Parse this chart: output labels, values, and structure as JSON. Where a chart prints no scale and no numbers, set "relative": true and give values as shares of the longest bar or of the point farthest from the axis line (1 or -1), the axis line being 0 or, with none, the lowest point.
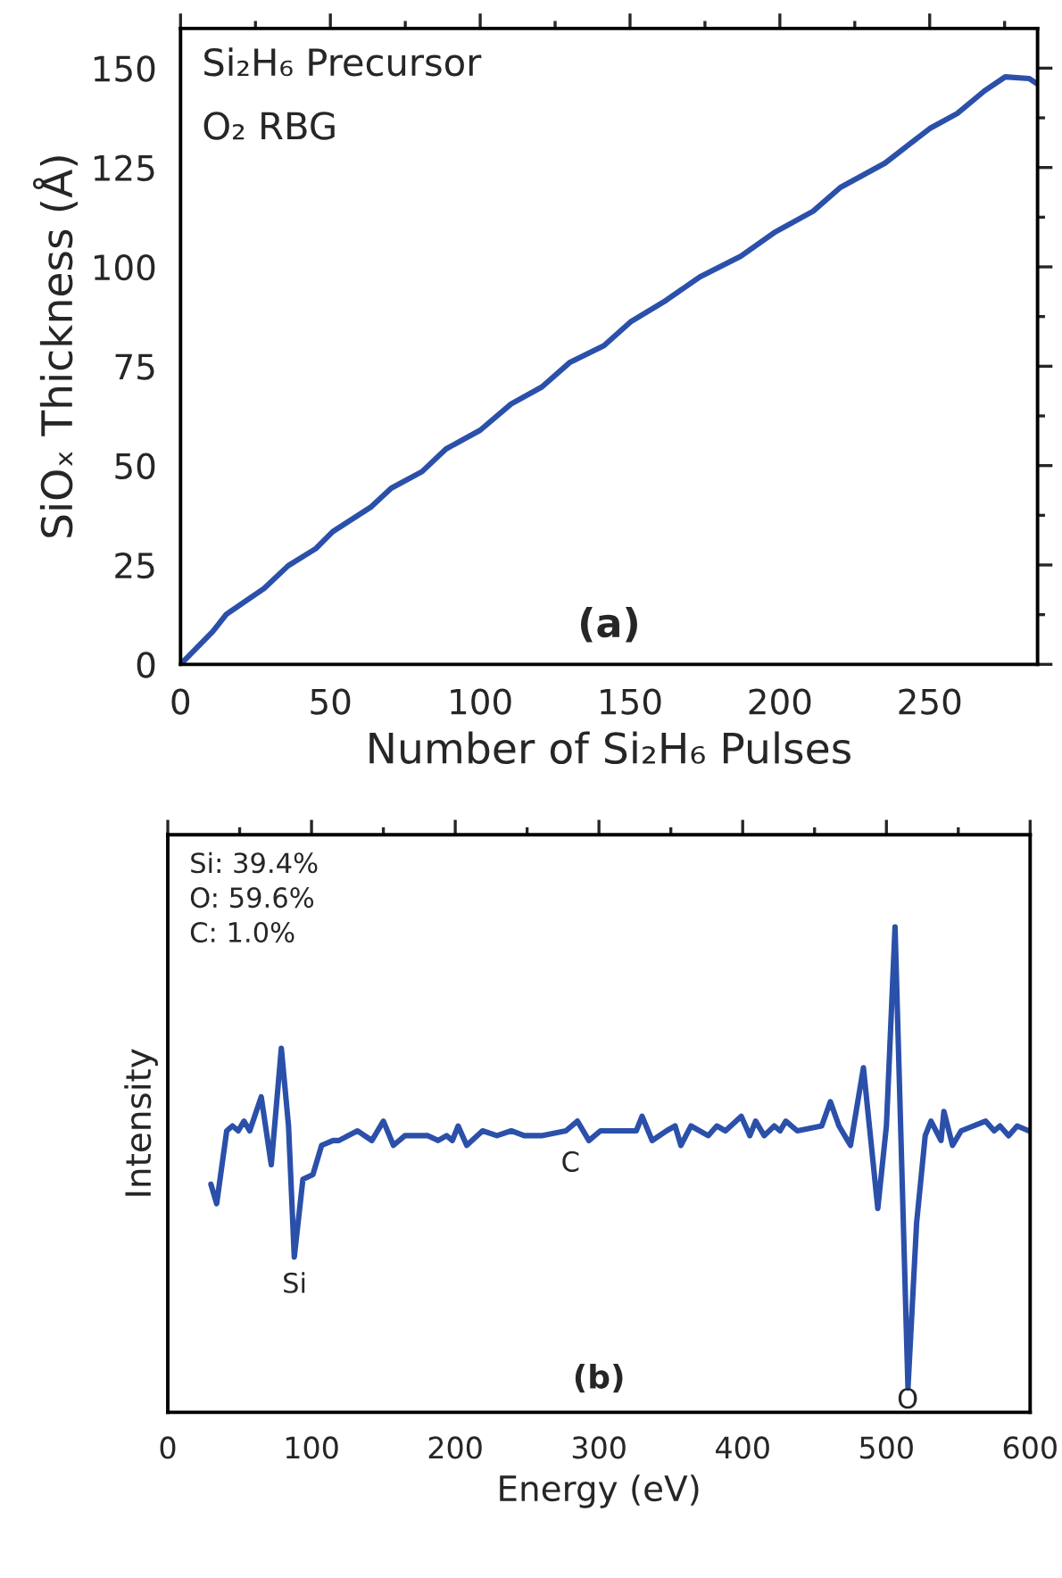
{
  "chart_data": [
    {
      "type": "line",
      "title": "(a)",
      "xlabel": "Number of Si₂H₆ Pulses",
      "ylabel": "SiOₓ Thickness (Å)",
      "annotations": [
        "Si₂H₆ Precursor",
        "O₂ RBG"
      ],
      "xlim": [
        0,
        286
      ],
      "xticks": [
        0,
        50,
        100,
        150,
        200,
        250
      ],
      "ylim": [
        0,
        160
      ],
      "yticks": [
        0,
        25,
        50,
        75,
        100,
        125,
        150
      ],
      "series": [
        {
          "color": "#2b50aa",
          "x": [
            0,
            10.8,
            15.3,
            27.9,
            35.9,
            45.1,
            50.8,
            63.4,
            70.3,
            80.6,
            88.6,
            100,
            110.3,
            120.6,
            129.8,
            141.3,
            150.4,
            161.9,
            173.3,
            187,
            198.5,
            211.1,
            220.2,
            235.1,
            250,
            259.2,
            268.3,
            275.2,
            283.2,
            286
          ],
          "values": [
            0,
            8.3,
            12.6,
            19.1,
            24.8,
            29.1,
            33.4,
            39.5,
            44.3,
            48.5,
            54.2,
            58.9,
            65.5,
            69.8,
            75.9,
            80.2,
            86.3,
            91.5,
            97.5,
            102.7,
            108.8,
            114,
            120,
            126.1,
            134.8,
            138.6,
            144.3,
            147.8,
            147.4,
            146
          ]
        }
      ]
    },
    {
      "type": "line",
      "title": "(b)",
      "xlabel": "Energy (eV)",
      "ylabel": "Intensity",
      "relative": true,
      "annotations": [
        "Si: 39.4%\nO: 59.6%\nC: 1.0%",
        "Si",
        "C",
        "O"
      ],
      "xlim": [
        0,
        600
      ],
      "xticks": [
        0,
        100,
        200,
        300,
        400,
        500,
        600
      ],
      "series": [
        {
          "color": "#2b50aa",
          "x": [
            30,
            34,
            41,
            45,
            49,
            53,
            57,
            65,
            72,
            79,
            84,
            88,
            94,
            101,
            107,
            115,
            119,
            132,
            142,
            150,
            157,
            165,
            181,
            188,
            194,
            198,
            202,
            208,
            219,
            229,
            239,
            248,
            260,
            277,
            285,
            293,
            301,
            326,
            330,
            337,
            347,
            353,
            357,
            364,
            376,
            382,
            388,
            399,
            405,
            409,
            415,
            422,
            426,
            430,
            438,
            455,
            461,
            467,
            475,
            484,
            494,
            500,
            506,
            515,
            521,
            527,
            531,
            538,
            540,
            546,
            552,
            569,
            575,
            579,
            585,
            591,
            599
          ],
          "values": [
            0.47,
            0.43,
            0.58,
            0.59,
            0.58,
            0.6,
            0.58,
            0.65,
            0.51,
            0.75,
            0.59,
            0.32,
            0.48,
            0.49,
            0.55,
            0.56,
            0.56,
            0.58,
            0.56,
            0.6,
            0.55,
            0.57,
            0.57,
            0.56,
            0.57,
            0.56,
            0.59,
            0.55,
            0.58,
            0.57,
            0.58,
            0.57,
            0.57,
            0.58,
            0.6,
            0.56,
            0.58,
            0.58,
            0.61,
            0.56,
            0.58,
            0.59,
            0.55,
            0.59,
            0.57,
            0.59,
            0.58,
            0.61,
            0.57,
            0.6,
            0.57,
            0.59,
            0.58,
            0.6,
            0.58,
            0.59,
            0.64,
            0.59,
            0.55,
            0.71,
            0.42,
            0.59,
            1.0,
            0.05,
            0.39,
            0.57,
            0.6,
            0.56,
            0.62,
            0.55,
            0.58,
            0.6,
            0.58,
            0.59,
            0.57,
            0.59,
            0.58
          ]
        }
      ]
    }
  ]
}
